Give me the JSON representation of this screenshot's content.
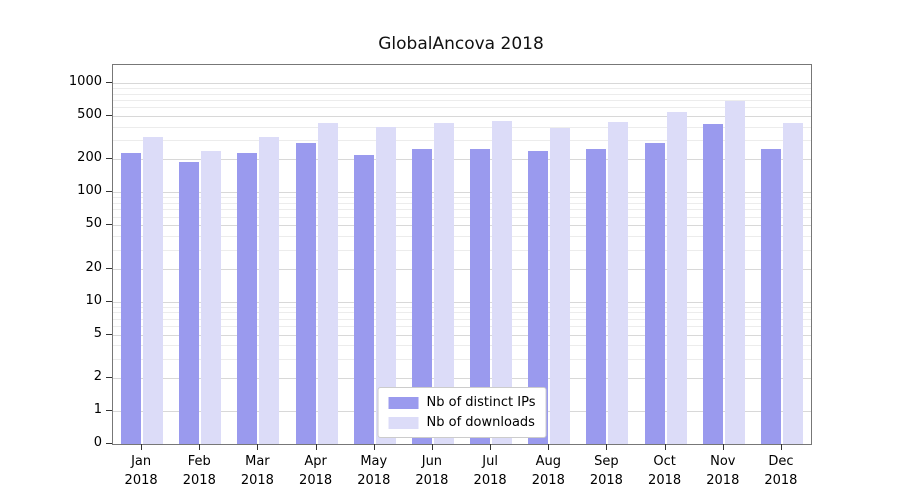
{
  "chart_data": {
    "type": "bar",
    "title": "GlobalAncova 2018",
    "categories": [
      "Jan",
      "Feb",
      "Mar",
      "Apr",
      "May",
      "Jun",
      "Jul",
      "Aug",
      "Sep",
      "Oct",
      "Nov",
      "Dec"
    ],
    "year_label": "2018",
    "series": [
      {
        "name": "Nb of distinct IPs",
        "color": "#9a9aee",
        "values": [
          230,
          190,
          230,
          280,
          220,
          250,
          250,
          240,
          250,
          280,
          420,
          250
        ]
      },
      {
        "name": "Nb of downloads",
        "color": "#dcdcf8",
        "values": [
          320,
          240,
          320,
          430,
          400,
          430,
          450,
          390,
          440,
          540,
          680,
          430
        ]
      }
    ],
    "yticks": [
      0,
      1,
      2,
      5,
      10,
      20,
      50,
      100,
      200,
      500,
      1000
    ],
    "yscale": "symlog",
    "ylim": [
      0,
      1460
    ],
    "grid": true,
    "legend_position": "lower center",
    "xlabel": "",
    "ylabel": ""
  }
}
